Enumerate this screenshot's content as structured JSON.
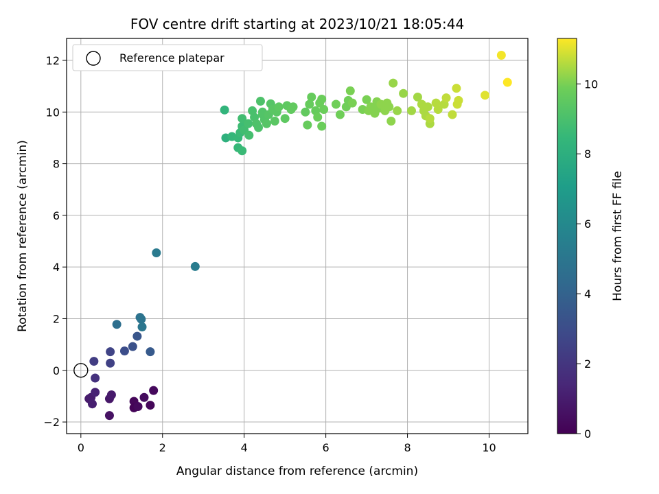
{
  "chart_data": {
    "type": "scatter",
    "title": "FOV centre drift starting at 2023/10/21 18:05:44",
    "xlabel": "Angular distance from reference (arcmin)",
    "ylabel": "Rotation from reference (arcmin)",
    "xlim": [
      -0.35,
      10.95
    ],
    "ylim": [
      -2.45,
      12.85
    ],
    "xticks": [
      0,
      2,
      4,
      6,
      8,
      10
    ],
    "yticks": [
      -2,
      0,
      2,
      4,
      6,
      8,
      10,
      12
    ],
    "grid": true,
    "legend": {
      "placement": "top-left",
      "entries": [
        "Reference platepar"
      ]
    },
    "reference_point": {
      "x": 0,
      "y": 0
    },
    "colorbar": {
      "label": "Hours from first FF file",
      "range": [
        0,
        11.3
      ],
      "ticks": [
        0,
        2,
        4,
        6,
        8,
        10
      ],
      "colormap": "viridis"
    },
    "points": [
      {
        "x": 0.2,
        "y": -1.1,
        "t": 0.9
      },
      {
        "x": 0.25,
        "y": -1.05,
        "t": 1.0
      },
      {
        "x": 0.28,
        "y": -1.3,
        "t": 1.1
      },
      {
        "x": 0.35,
        "y": -0.85,
        "t": 1.2
      },
      {
        "x": 0.7,
        "y": -1.1,
        "t": 0.8
      },
      {
        "x": 0.75,
        "y": -0.95,
        "t": 0.9
      },
      {
        "x": 0.7,
        "y": -1.75,
        "t": 0.6
      },
      {
        "x": 1.3,
        "y": -1.2,
        "t": 0.2
      },
      {
        "x": 1.3,
        "y": -1.45,
        "t": 0.1
      },
      {
        "x": 1.4,
        "y": -1.4,
        "t": 0.3
      },
      {
        "x": 1.55,
        "y": -1.05,
        "t": 0.4
      },
      {
        "x": 1.7,
        "y": -1.35,
        "t": 0.2
      },
      {
        "x": 1.78,
        "y": -0.78,
        "t": 0.3
      },
      {
        "x": 0.35,
        "y": -0.3,
        "t": 1.8
      },
      {
        "x": 0.32,
        "y": 0.35,
        "t": 2.3
      },
      {
        "x": 0.72,
        "y": 0.28,
        "t": 2.5
      },
      {
        "x": 0.72,
        "y": 0.72,
        "t": 2.6
      },
      {
        "x": 1.07,
        "y": 0.75,
        "t": 3.0
      },
      {
        "x": 1.27,
        "y": 0.92,
        "t": 3.2
      },
      {
        "x": 1.38,
        "y": 1.32,
        "t": 3.4
      },
      {
        "x": 1.7,
        "y": 0.72,
        "t": 3.6
      },
      {
        "x": 0.88,
        "y": 1.78,
        "t": 4.6
      },
      {
        "x": 1.45,
        "y": 2.05,
        "t": 4.8
      },
      {
        "x": 1.48,
        "y": 1.98,
        "t": 4.9
      },
      {
        "x": 1.5,
        "y": 1.68,
        "t": 5.0
      },
      {
        "x": 1.85,
        "y": 4.55,
        "t": 5.2
      },
      {
        "x": 2.8,
        "y": 4.02,
        "t": 5.3
      },
      {
        "x": 3.52,
        "y": 10.08,
        "t": 8.3
      },
      {
        "x": 3.55,
        "y": 9.0,
        "t": 8.1
      },
      {
        "x": 3.7,
        "y": 9.05,
        "t": 8.4
      },
      {
        "x": 3.85,
        "y": 8.62,
        "t": 8.5
      },
      {
        "x": 3.95,
        "y": 8.5,
        "t": 8.6
      },
      {
        "x": 3.85,
        "y": 9.0,
        "t": 8.5
      },
      {
        "x": 3.9,
        "y": 9.2,
        "t": 8.6
      },
      {
        "x": 3.95,
        "y": 9.45,
        "t": 8.7
      },
      {
        "x": 4.0,
        "y": 9.3,
        "t": 8.8
      },
      {
        "x": 3.95,
        "y": 9.75,
        "t": 8.8
      },
      {
        "x": 4.1,
        "y": 9.55,
        "t": 8.9
      },
      {
        "x": 4.12,
        "y": 9.1,
        "t": 8.9
      },
      {
        "x": 4.2,
        "y": 10.05,
        "t": 9.0
      },
      {
        "x": 4.25,
        "y": 9.8,
        "t": 9.0
      },
      {
        "x": 4.3,
        "y": 9.55,
        "t": 9.1
      },
      {
        "x": 4.35,
        "y": 9.4,
        "t": 9.1
      },
      {
        "x": 4.4,
        "y": 10.42,
        "t": 9.1
      },
      {
        "x": 4.45,
        "y": 9.9,
        "t": 9.2
      },
      {
        "x": 4.5,
        "y": 9.7,
        "t": 9.2
      },
      {
        "x": 4.45,
        "y": 10.0,
        "t": 9.2
      },
      {
        "x": 4.55,
        "y": 9.55,
        "t": 9.3
      },
      {
        "x": 4.6,
        "y": 9.9,
        "t": 9.3
      },
      {
        "x": 4.65,
        "y": 10.32,
        "t": 9.3
      },
      {
        "x": 4.7,
        "y": 10.1,
        "t": 9.4
      },
      {
        "x": 4.75,
        "y": 9.65,
        "t": 9.4
      },
      {
        "x": 4.8,
        "y": 10.0,
        "t": 9.4
      },
      {
        "x": 4.85,
        "y": 10.2,
        "t": 9.5
      },
      {
        "x": 5.0,
        "y": 9.75,
        "t": 9.5
      },
      {
        "x": 5.05,
        "y": 10.25,
        "t": 9.5
      },
      {
        "x": 5.15,
        "y": 10.1,
        "t": 9.6
      },
      {
        "x": 5.2,
        "y": 10.2,
        "t": 9.6
      },
      {
        "x": 5.5,
        "y": 10.0,
        "t": 9.6
      },
      {
        "x": 5.55,
        "y": 9.5,
        "t": 9.7
      },
      {
        "x": 5.6,
        "y": 10.3,
        "t": 9.7
      },
      {
        "x": 5.65,
        "y": 10.58,
        "t": 9.7
      },
      {
        "x": 5.75,
        "y": 10.05,
        "t": 9.7
      },
      {
        "x": 5.8,
        "y": 9.8,
        "t": 9.8
      },
      {
        "x": 5.85,
        "y": 10.35,
        "t": 9.8
      },
      {
        "x": 5.9,
        "y": 9.45,
        "t": 9.8
      },
      {
        "x": 5.9,
        "y": 10.5,
        "t": 9.8
      },
      {
        "x": 5.95,
        "y": 10.1,
        "t": 9.8
      },
      {
        "x": 6.25,
        "y": 10.3,
        "t": 9.9
      },
      {
        "x": 6.35,
        "y": 9.9,
        "t": 9.9
      },
      {
        "x": 6.5,
        "y": 10.2,
        "t": 9.9
      },
      {
        "x": 6.55,
        "y": 10.45,
        "t": 9.9
      },
      {
        "x": 6.6,
        "y": 10.82,
        "t": 10.0
      },
      {
        "x": 6.65,
        "y": 10.35,
        "t": 10.0
      },
      {
        "x": 6.9,
        "y": 10.1,
        "t": 10.0
      },
      {
        "x": 7.0,
        "y": 10.48,
        "t": 10.0
      },
      {
        "x": 7.05,
        "y": 10.05,
        "t": 10.1
      },
      {
        "x": 7.1,
        "y": 10.2,
        "t": 10.1
      },
      {
        "x": 7.2,
        "y": 9.95,
        "t": 10.1
      },
      {
        "x": 7.25,
        "y": 10.4,
        "t": 10.1
      },
      {
        "x": 7.3,
        "y": 10.15,
        "t": 10.1
      },
      {
        "x": 7.35,
        "y": 10.3,
        "t": 10.2
      },
      {
        "x": 7.45,
        "y": 10.05,
        "t": 10.2
      },
      {
        "x": 7.5,
        "y": 10.35,
        "t": 10.2
      },
      {
        "x": 7.55,
        "y": 10.2,
        "t": 10.2
      },
      {
        "x": 7.6,
        "y": 9.65,
        "t": 10.2
      },
      {
        "x": 7.65,
        "y": 11.12,
        "t": 10.3
      },
      {
        "x": 7.75,
        "y": 10.05,
        "t": 10.3
      },
      {
        "x": 7.9,
        "y": 10.72,
        "t": 10.3
      },
      {
        "x": 8.1,
        "y": 10.05,
        "t": 10.4
      },
      {
        "x": 8.25,
        "y": 10.58,
        "t": 10.4
      },
      {
        "x": 8.35,
        "y": 10.3,
        "t": 10.5
      },
      {
        "x": 8.4,
        "y": 10.05,
        "t": 10.5
      },
      {
        "x": 8.45,
        "y": 9.85,
        "t": 10.5
      },
      {
        "x": 8.5,
        "y": 10.2,
        "t": 10.5
      },
      {
        "x": 8.55,
        "y": 9.55,
        "t": 10.5
      },
      {
        "x": 8.55,
        "y": 9.75,
        "t": 10.6
      },
      {
        "x": 8.7,
        "y": 10.35,
        "t": 10.6
      },
      {
        "x": 8.75,
        "y": 10.1,
        "t": 10.6
      },
      {
        "x": 8.9,
        "y": 10.3,
        "t": 10.6
      },
      {
        "x": 8.95,
        "y": 10.55,
        "t": 10.7
      },
      {
        "x": 9.1,
        "y": 9.9,
        "t": 10.7
      },
      {
        "x": 9.2,
        "y": 10.92,
        "t": 10.8
      },
      {
        "x": 9.22,
        "y": 10.3,
        "t": 10.8
      },
      {
        "x": 9.25,
        "y": 10.45,
        "t": 10.8
      },
      {
        "x": 9.9,
        "y": 10.65,
        "t": 11.0
      },
      {
        "x": 10.3,
        "y": 12.2,
        "t": 11.2
      },
      {
        "x": 10.45,
        "y": 11.15,
        "t": 11.3
      }
    ]
  }
}
